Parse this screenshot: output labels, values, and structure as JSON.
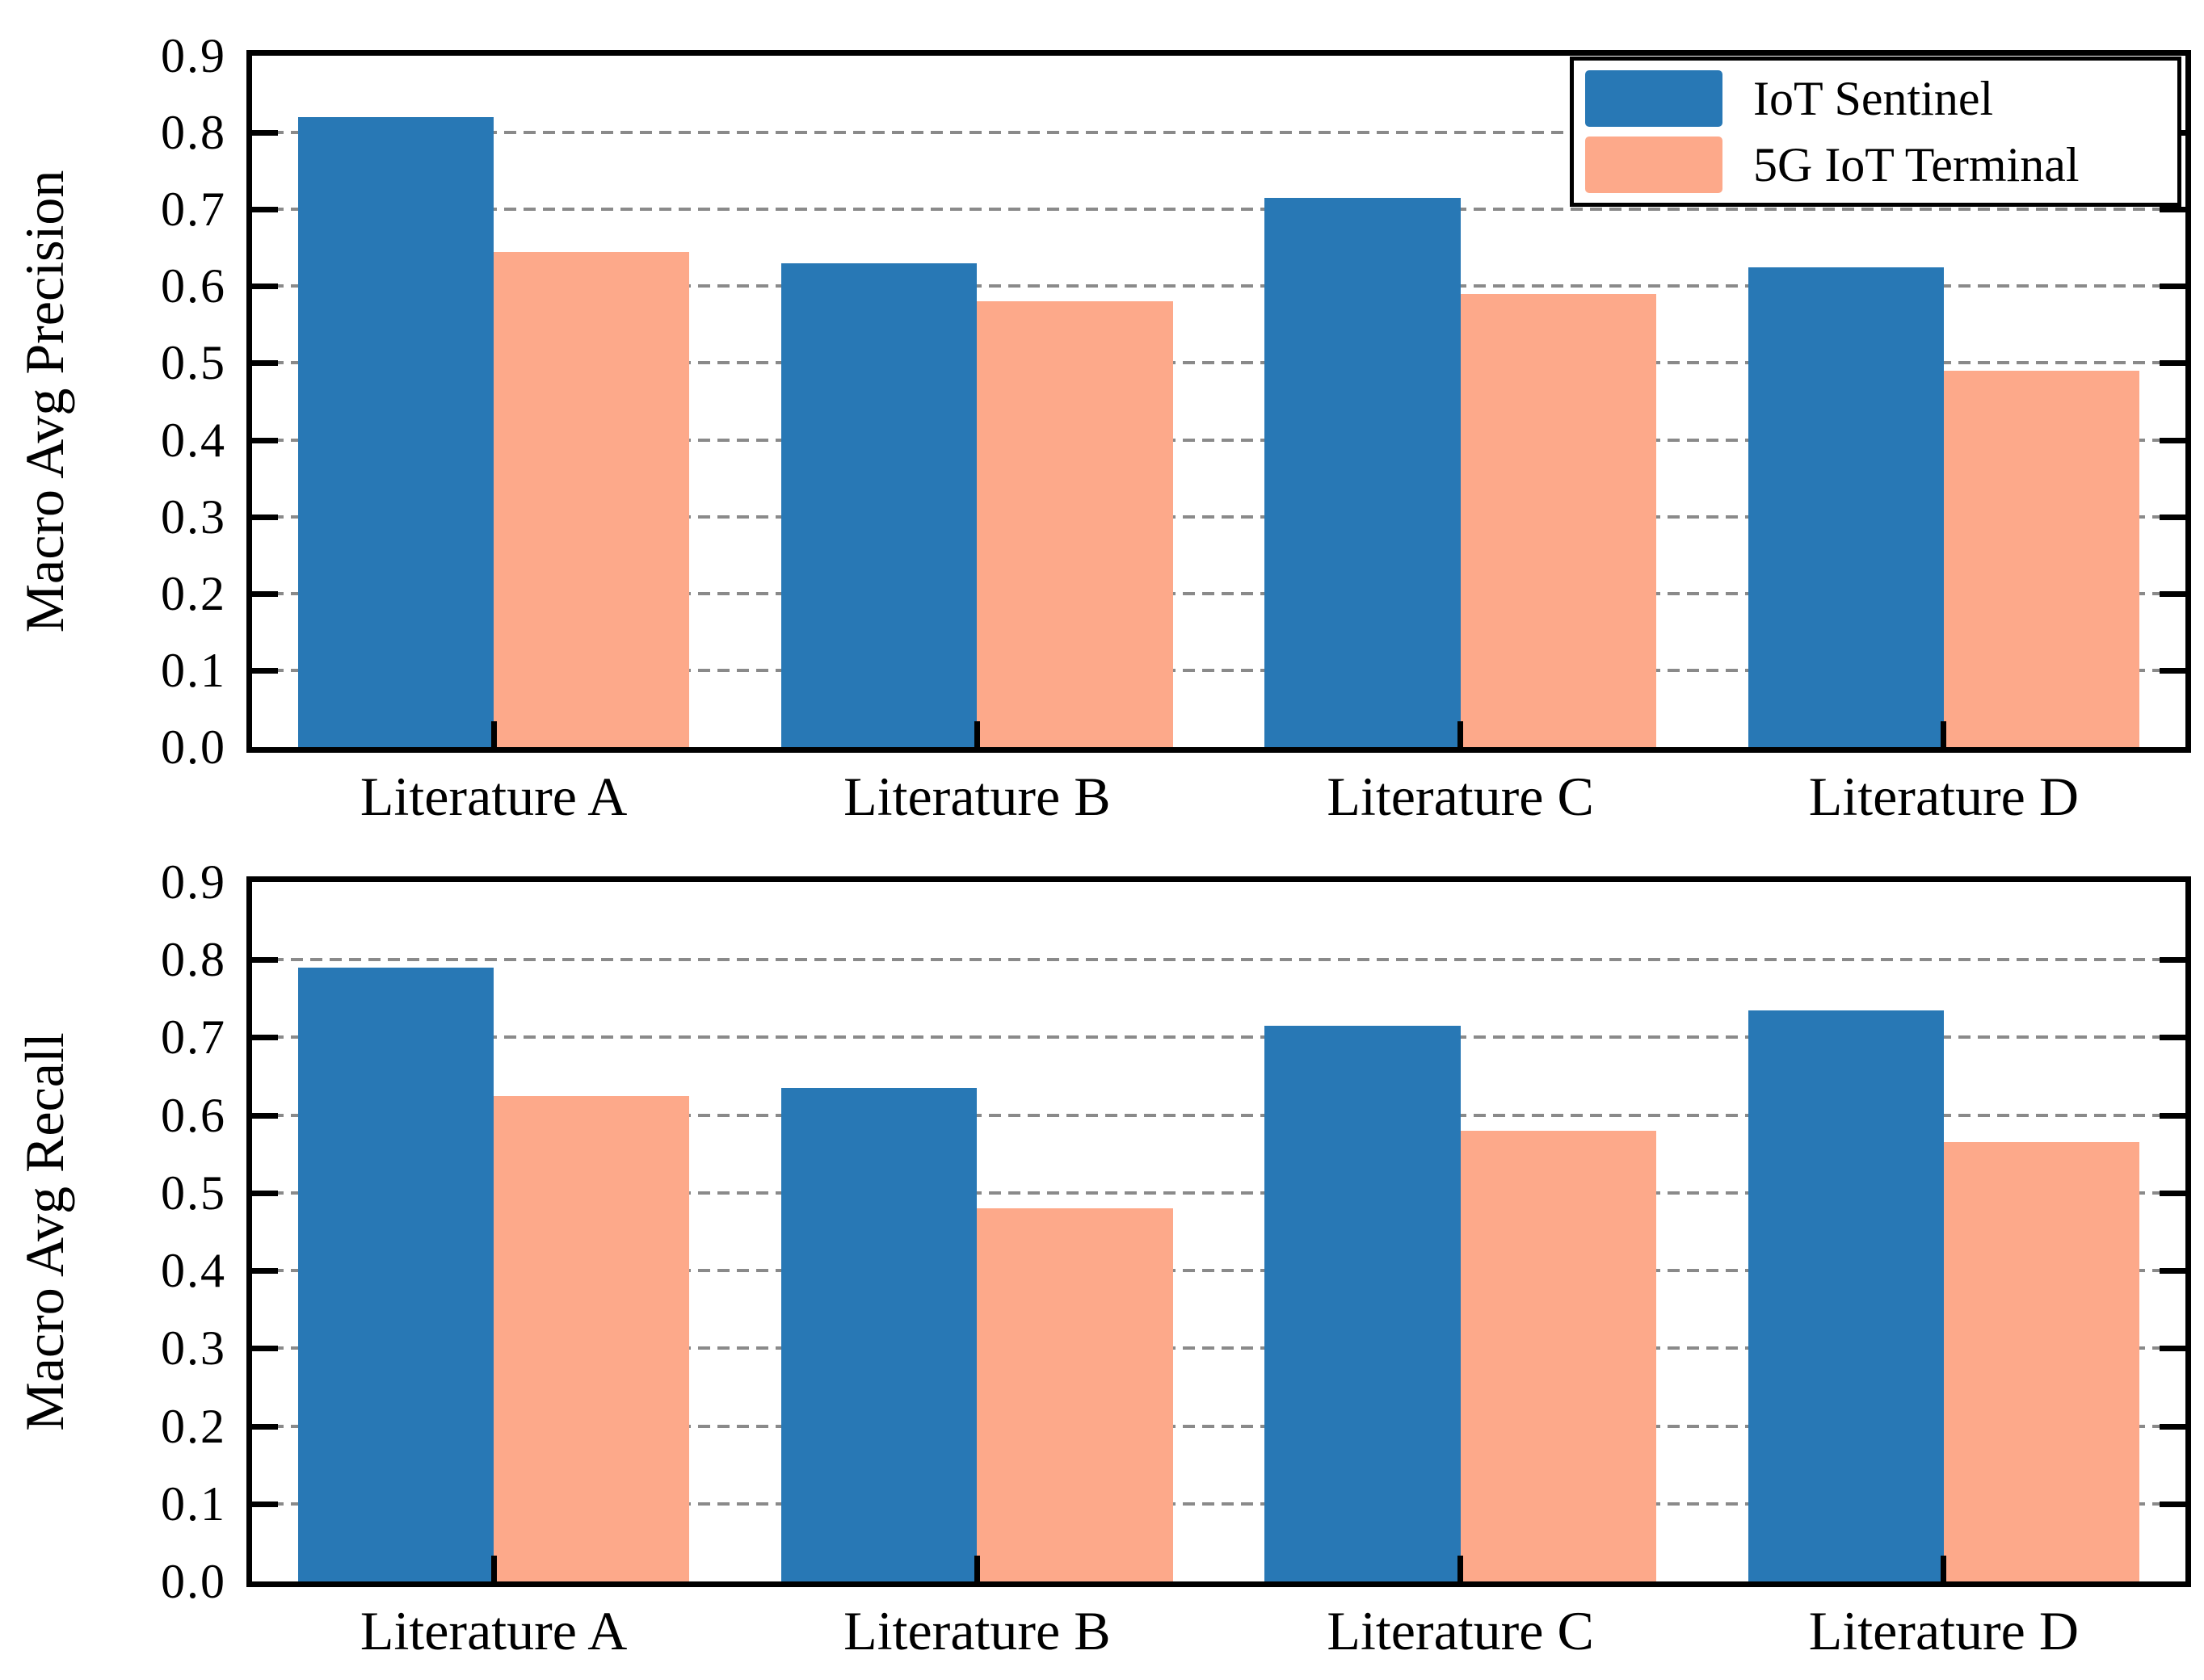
{
  "figure": {
    "background": "#ffffff",
    "frame_color": "#000000",
    "gridline_color": "#8a8a8a",
    "gridline_style": "dashed"
  },
  "legend": {
    "position": "top-right of precision panel",
    "items": [
      {
        "label": "IoT Sentinel",
        "color": "#2878B5"
      },
      {
        "label": "5G IoT Terminal",
        "color": "#FDA98A"
      }
    ]
  },
  "chart_data": [
    {
      "type": "bar",
      "title": "",
      "xlabel": "",
      "ylabel": "Macro Avg Precision",
      "categories": [
        "Literature A",
        "Literature B",
        "Literature C",
        "Literature D"
      ],
      "series": [
        {
          "name": "IoT Sentinel",
          "color": "#2878B5",
          "values": [
            0.82,
            0.63,
            0.715,
            0.625
          ]
        },
        {
          "name": "5G IoT Terminal",
          "color": "#FDA98A",
          "values": [
            0.645,
            0.58,
            0.59,
            0.49
          ]
        }
      ],
      "ylim": [
        0.0,
        0.9
      ],
      "yticks": [
        "0.9",
        "0.8",
        "0.7",
        "0.6",
        "0.5",
        "0.4",
        "0.3",
        "0.2",
        "0.1",
        "0.0"
      ],
      "grid": "horizontal dashed lines at 0.1 through 0.8",
      "legend_position": "upper right"
    },
    {
      "type": "bar",
      "title": "",
      "xlabel": "",
      "ylabel": "Macro Avg Recall",
      "categories": [
        "Literature A",
        "Literature B",
        "Literature C",
        "Literature D"
      ],
      "series": [
        {
          "name": "IoT Sentinel",
          "color": "#2878B5",
          "values": [
            0.79,
            0.635,
            0.715,
            0.735
          ]
        },
        {
          "name": "5G IoT Terminal",
          "color": "#FDA98A",
          "values": [
            0.625,
            0.48,
            0.58,
            0.565
          ]
        }
      ],
      "ylim": [
        0.0,
        0.9
      ],
      "yticks": [
        "0.9",
        "0.8",
        "0.7",
        "0.6",
        "0.5",
        "0.4",
        "0.3",
        "0.2",
        "0.1",
        "0.0"
      ],
      "grid": "horizontal dashed lines at 0.1 through 0.8",
      "legend_position": "none"
    }
  ]
}
